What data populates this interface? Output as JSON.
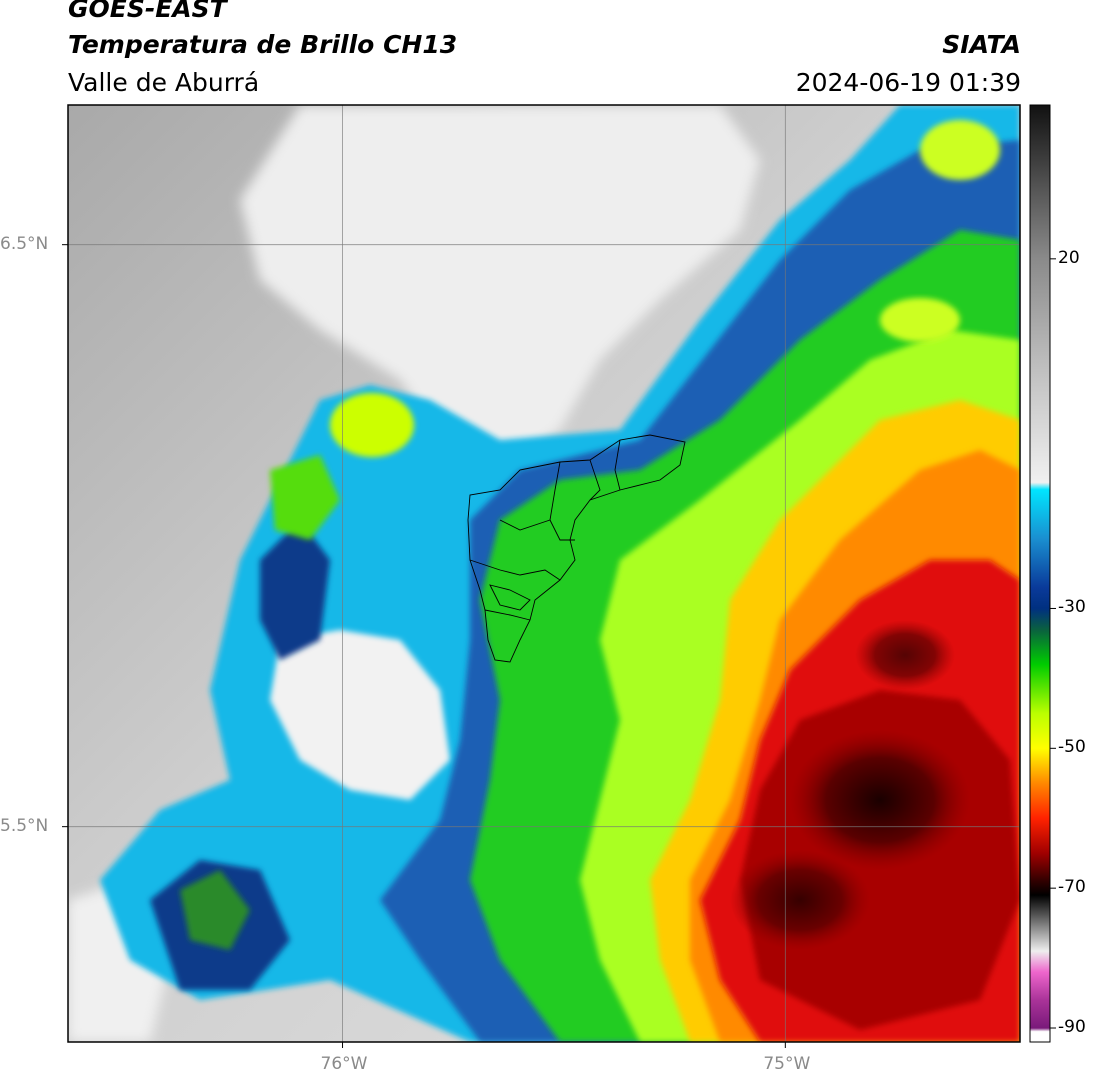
{
  "header": {
    "title_line1": "GOES-EAST",
    "title_line2": "Temperatura de Brillo CH13",
    "subtitle": "Valle de Aburrá",
    "organization": "SIATA",
    "timestamp": "2024-06-19 01:39"
  },
  "map": {
    "extent": {
      "lon_min": -76.62,
      "lon_max": -74.47,
      "lat_min": 5.13,
      "lat_max": 6.74
    },
    "gridlines": true,
    "lat_ticks": [
      {
        "value": 6.5,
        "label": "6.5°N"
      },
      {
        "value": 5.5,
        "label": "5.5°N"
      }
    ],
    "lon_ticks": [
      {
        "value": -76,
        "label": "76°W"
      },
      {
        "value": -75,
        "label": "75°W"
      }
    ],
    "colors": {
      "land_clear": "#9a9a9a",
      "cloud_light": "#ededed",
      "gridline": "#777777",
      "boundary": "#000000"
    }
  },
  "colorbar": {
    "range": [
      -92,
      42
    ],
    "ticks": [
      {
        "value": 20,
        "label": "20"
      },
      {
        "value": -30,
        "label": "-30"
      },
      {
        "value": -50,
        "label": "-50"
      },
      {
        "value": -70,
        "label": "-70"
      },
      {
        "value": -90,
        "label": "-90"
      }
    ],
    "stops": [
      {
        "value": 42,
        "color": "#111111"
      },
      {
        "value": 30,
        "color": "#555555"
      },
      {
        "value": 20,
        "color": "#8a8a8a"
      },
      {
        "value": 5,
        "color": "#bdbdbd"
      },
      {
        "value": -12,
        "color": "#f0f0f0"
      },
      {
        "value": -13,
        "color": "#00e5ff"
      },
      {
        "value": -20,
        "color": "#1a8fd0"
      },
      {
        "value": -27,
        "color": "#0a3a9a"
      },
      {
        "value": -30,
        "color": "#003080"
      },
      {
        "value": -33,
        "color": "#0a6040"
      },
      {
        "value": -38,
        "color": "#00cc00"
      },
      {
        "value": -45,
        "color": "#bbff00"
      },
      {
        "value": -50,
        "color": "#ffff00"
      },
      {
        "value": -55,
        "color": "#ff8800"
      },
      {
        "value": -60,
        "color": "#ff2200"
      },
      {
        "value": -65,
        "color": "#a00000"
      },
      {
        "value": -69,
        "color": "#300000"
      },
      {
        "value": -71,
        "color": "#000000"
      },
      {
        "value": -75,
        "color": "#777777"
      },
      {
        "value": -79,
        "color": "#eeeeee"
      },
      {
        "value": -82,
        "color": "#ee66cc"
      },
      {
        "value": -86,
        "color": "#aa3399"
      },
      {
        "value": -90,
        "color": "#7a1a7a"
      },
      {
        "value": -90.5,
        "color": "#ffffff"
      },
      {
        "value": -92,
        "color": "#ffffff"
      }
    ]
  }
}
